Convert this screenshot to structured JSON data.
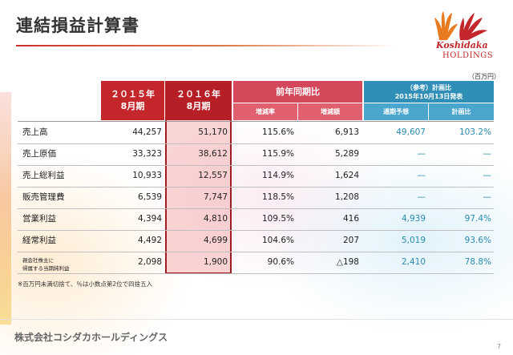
{
  "title": "連結損益計算書",
  "logo": {
    "name": "Koshidaka",
    "sub": "HOLDINGS"
  },
  "unit": "（百万円）",
  "header": {
    "fy2015_line1": "２０１５年",
    "fy2015_line2": "8月期",
    "fy2016_line1": "２０１６年",
    "fy2016_line2": "8月期",
    "prev_year": "前年同期比",
    "rate": "増減率",
    "amount": "増減額",
    "ref_line1": "（参考）計画比",
    "ref_line2": "2015年10月13日発表",
    "forecast": "通期予想",
    "plan_ratio": "計画比"
  },
  "rows": [
    {
      "label": "売上高",
      "fy2015": "44,257",
      "fy2016": "51,170",
      "rate": "115.6%",
      "amount": "6,913",
      "forecast": "49,607",
      "plan": "103.2%"
    },
    {
      "label": "売上原価",
      "fy2015": "33,323",
      "fy2016": "38,612",
      "rate": "115.9%",
      "amount": "5,289",
      "forecast": "—",
      "plan": "—"
    },
    {
      "label": "売上総利益",
      "fy2015": "10,933",
      "fy2016": "12,557",
      "rate": "114.9%",
      "amount": "1,624",
      "forecast": "—",
      "plan": "—"
    },
    {
      "label": "販売管理費",
      "fy2015": "6,539",
      "fy2016": "7,747",
      "rate": "118.5%",
      "amount": "1,208",
      "forecast": "—",
      "plan": "—"
    },
    {
      "label": "営業利益",
      "fy2015": "4,394",
      "fy2016": "4,810",
      "rate": "109.5%",
      "amount": "416",
      "forecast": "4,939",
      "plan": "97.4%"
    },
    {
      "label": "経常利益",
      "fy2015": "4,492",
      "fy2016": "4,699",
      "rate": "104.6%",
      "amount": "207",
      "forecast": "5,019",
      "plan": "93.6%"
    },
    {
      "label_line1": "親会社株主に",
      "label_line2": "帰属する当期純利益",
      "fy2015": "2,098",
      "fy2016": "1,900",
      "rate": "90.6%",
      "amount": "△198",
      "forecast": "2,410",
      "plan": "78.8%"
    }
  ],
  "note": "※百万円未満切捨て、％は小数点第2位で四捨五入",
  "footer": "株式会社コシダカホールディングス",
  "page_number": "7"
}
